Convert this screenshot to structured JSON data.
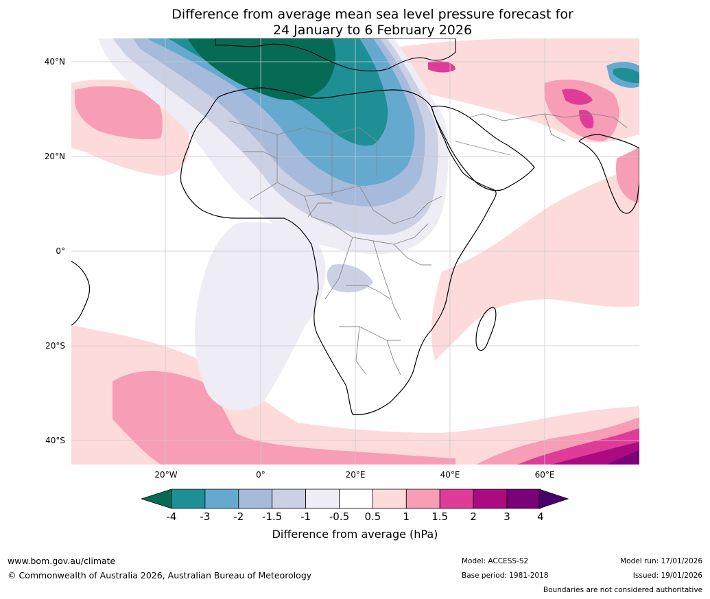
{
  "title": {
    "line1": "Difference from average mean sea level pressure forecast for",
    "line2": "24 January to 6 February 2026"
  },
  "axes": {
    "lat_labels": [
      "40°N",
      "20°N",
      "0°",
      "20°S",
      "40°S"
    ],
    "lon_labels": [
      "20°W",
      "0°",
      "20°E",
      "40°E",
      "60°E"
    ]
  },
  "colorbar": {
    "label": "Difference from average (hPa)",
    "ticks": [
      "-4",
      "-3",
      "-2",
      "-1.5",
      "-1",
      "-0.5",
      "0.5",
      "1",
      "1.5",
      "2",
      "3",
      "4"
    ],
    "colors": [
      "#066b55",
      "#1f8f96",
      "#66a9cf",
      "#a6badb",
      "#ccd0e4",
      "#eeecf4",
      "#ffffff",
      "#fddbdb",
      "#f79db6",
      "#de3c98",
      "#ac0a81",
      "#7a0177"
    ],
    "underflow_color": "#066b55",
    "overflow_color": "#49006a"
  },
  "footer": {
    "website": "www.bom.gov.au/climate",
    "copyright": "© Commonwealth of Australia 2026, Australian Bureau of Meteorology",
    "model": "Model: ACCESS-S2",
    "base_period": "Base period: 1981-2018",
    "model_run": "Model run: 17/01/2026",
    "issued": "Issued: 19/01/2026",
    "disclaimer": "Boundaries are not considered authoritative"
  }
}
